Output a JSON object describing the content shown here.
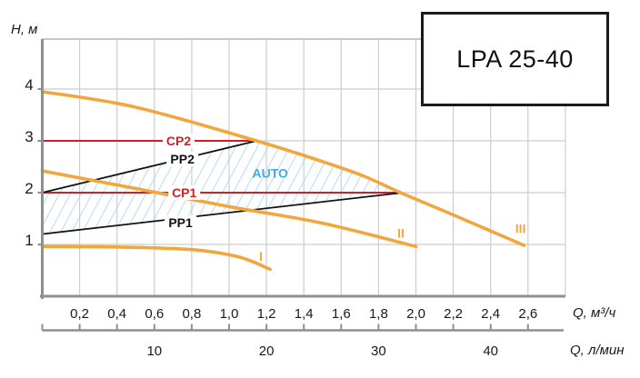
{
  "title": "LPA 25-40",
  "chart_data": {
    "type": "line",
    "title": "LPA 25-40",
    "ylabel": "H, м",
    "xlabel_primary": "Q, м³/ч",
    "xlabel_secondary": "Q, л/мин",
    "xlim": [
      0,
      2.8
    ],
    "ylim": [
      0,
      5
    ],
    "grid": true,
    "x_ticks_m3h": [
      {
        "v": 0.2,
        "label": "0,2"
      },
      {
        "v": 0.4,
        "label": "0,4"
      },
      {
        "v": 0.6,
        "label": "0,6"
      },
      {
        "v": 0.8,
        "label": "0,8"
      },
      {
        "v": 1.0,
        "label": "1,0"
      },
      {
        "v": 1.2,
        "label": "1,2"
      },
      {
        "v": 1.4,
        "label": "1,4"
      },
      {
        "v": 1.6,
        "label": "1,6"
      },
      {
        "v": 1.8,
        "label": "1,8"
      },
      {
        "v": 2.0,
        "label": "2,0"
      },
      {
        "v": 2.2,
        "label": "2,2"
      },
      {
        "v": 2.4,
        "label": "2,4"
      },
      {
        "v": 2.6,
        "label": "2,6"
      }
    ],
    "x_ticks_lmin": [
      {
        "v": 0.6,
        "label": "10"
      },
      {
        "v": 1.2,
        "label": "20"
      },
      {
        "v": 1.8,
        "label": "30"
      },
      {
        "v": 2.4,
        "label": "40"
      }
    ],
    "y_ticks": [
      {
        "v": 1,
        "label": "1"
      },
      {
        "v": 2,
        "label": "2"
      },
      {
        "v": 3,
        "label": "3"
      },
      {
        "v": 4,
        "label": "4"
      }
    ],
    "series": [
      {
        "name": "I",
        "kind": "speed-curve",
        "points": [
          [
            0,
            0.96
          ],
          [
            0.4,
            0.95
          ],
          [
            0.8,
            0.9
          ],
          [
            1.05,
            0.76
          ],
          [
            1.22,
            0.52
          ]
        ]
      },
      {
        "name": "II",
        "kind": "speed-curve",
        "points": [
          [
            0,
            2.42
          ],
          [
            0.5,
            2.08
          ],
          [
            1.0,
            1.73
          ],
          [
            1.5,
            1.41
          ],
          [
            2.0,
            0.96
          ]
        ]
      },
      {
        "name": "III",
        "kind": "speed-curve",
        "points": [
          [
            0,
            3.95
          ],
          [
            0.5,
            3.65
          ],
          [
            1.147,
            3.0
          ],
          [
            1.5,
            2.6
          ],
          [
            1.72,
            2.32
          ],
          [
            1.93,
            1.98
          ],
          [
            2.2,
            1.57
          ],
          [
            2.58,
            0.98
          ]
        ]
      }
    ],
    "control_lines": [
      {
        "name": "CP1",
        "kind": "constant-pressure",
        "points": [
          [
            0,
            2.0
          ],
          [
            1.93,
            2.0
          ]
        ]
      },
      {
        "name": "CP2",
        "kind": "constant-pressure",
        "points": [
          [
            0,
            3.0
          ],
          [
            1.147,
            3.0
          ]
        ]
      },
      {
        "name": "PP1",
        "kind": "proportional-pressure",
        "points": [
          [
            0,
            1.2
          ],
          [
            1.93,
            2.0
          ]
        ]
      },
      {
        "name": "PP2",
        "kind": "proportional-pressure",
        "points": [
          [
            0,
            2.0
          ],
          [
            1.147,
            3.0
          ]
        ]
      }
    ],
    "auto_region": {
      "label": "AUTO",
      "polygon": [
        [
          0,
          2.0
        ],
        [
          1.147,
          3.0
        ],
        [
          1.35,
          2.81
        ],
        [
          1.5,
          2.6
        ],
        [
          1.72,
          2.32
        ],
        [
          1.85,
          2.13
        ],
        [
          1.93,
          2.0
        ],
        [
          0,
          1.2
        ]
      ]
    },
    "annotations": [
      {
        "text": "CP2",
        "q": 0.73,
        "h": 3.0,
        "role": "cp",
        "bg": true
      },
      {
        "text": "CP1",
        "q": 0.76,
        "h": 2.0,
        "role": "cp",
        "bg": true
      },
      {
        "text": "PP2",
        "q": 0.75,
        "h": 2.65,
        "role": "pp",
        "bg": true
      },
      {
        "text": "PP1",
        "q": 0.74,
        "h": 1.42,
        "role": "pp",
        "bg": true
      },
      {
        "text": "AUTO",
        "q": 1.22,
        "h": 2.38,
        "role": "auto",
        "bg": false
      },
      {
        "text": "I",
        "q": 1.17,
        "h": 0.77,
        "role": "speed",
        "bg": false
      },
      {
        "text": "II",
        "q": 1.92,
        "h": 1.22,
        "role": "speed",
        "bg": false
      },
      {
        "text": "III",
        "q": 2.56,
        "h": 1.31,
        "role": "speed",
        "bg": false
      }
    ]
  },
  "colors": {
    "speed_curve": "#F1A63E",
    "constant_pressure": "#CE2127",
    "proportional_pressure": "#121212",
    "hatch": "#A3D4EF",
    "auto_text": "#45ACDE",
    "grid": "#CDCDCD",
    "axis": "#8F8F8F",
    "frame": "#B5B5B5",
    "text": "#1A1A1A"
  }
}
